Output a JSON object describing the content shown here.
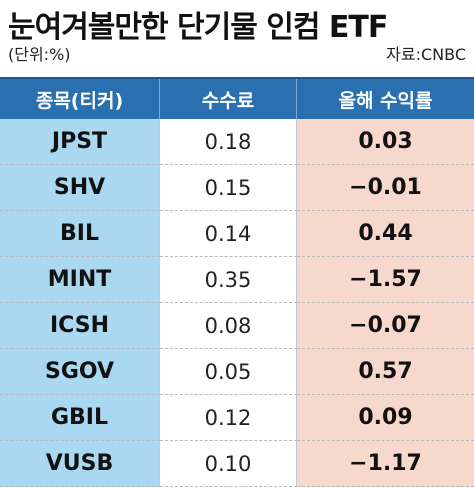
{
  "title": "눈여겨볼만한 단기물 인컴 ETF",
  "unit": "(단위:%)",
  "source": "자료:CNBC",
  "columns": [
    "종목(티커)",
    "수수료",
    "올해 수익률"
  ],
  "rows": [
    {
      "ticker": "JPST",
      "fee": "0.18",
      "ytd": "0.03"
    },
    {
      "ticker": "SHV",
      "fee": "0.15",
      "ytd": "−0.01"
    },
    {
      "ticker": "BIL",
      "fee": "0.14",
      "ytd": "0.44"
    },
    {
      "ticker": "MINT",
      "fee": "0.35",
      "ytd": "−1.57"
    },
    {
      "ticker": "ICSH",
      "fee": "0.08",
      "ytd": "−0.07"
    },
    {
      "ticker": "SGOV",
      "fee": "0.05",
      "ytd": "0.57"
    },
    {
      "ticker": "GBIL",
      "fee": "0.12",
      "ytd": "0.09"
    },
    {
      "ticker": "VUSB",
      "fee": "0.10",
      "ytd": "−1.17"
    }
  ],
  "colors": {
    "header": "#2a6fb0",
    "ticker_column": "#a9d8f0",
    "return_column": "#f7d8cc"
  }
}
